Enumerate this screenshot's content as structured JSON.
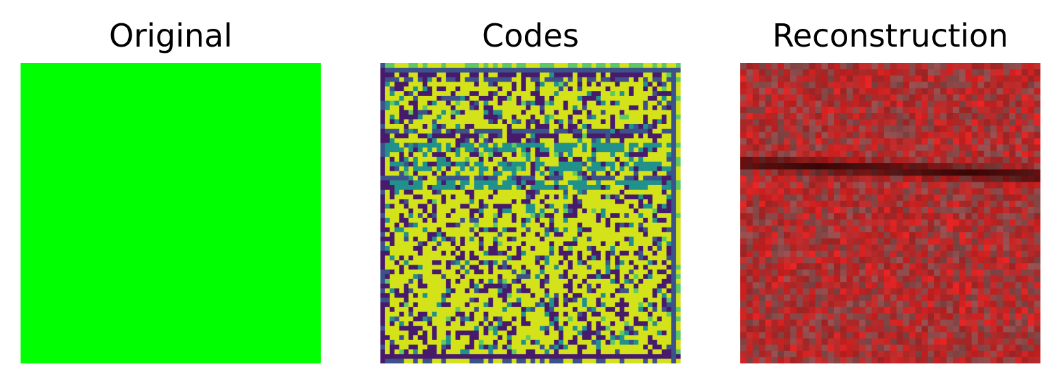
{
  "panels": {
    "original": {
      "title": "Original",
      "fill_color": "#00ff00"
    },
    "codes": {
      "title": "Codes",
      "colormap": "viridis",
      "palette": {
        "dark": "#481a6c",
        "blue": "#3b528b",
        "teal": "#21918c",
        "green": "#5ec962",
        "yellow": "#d4e21a"
      }
    },
    "reconstruction": {
      "title": "Reconstruction",
      "base_color": "#b62a2a",
      "dark_band_color": "#3a0505",
      "muted_color": "#8e4a4a",
      "bright_color": "#d42222"
    }
  }
}
